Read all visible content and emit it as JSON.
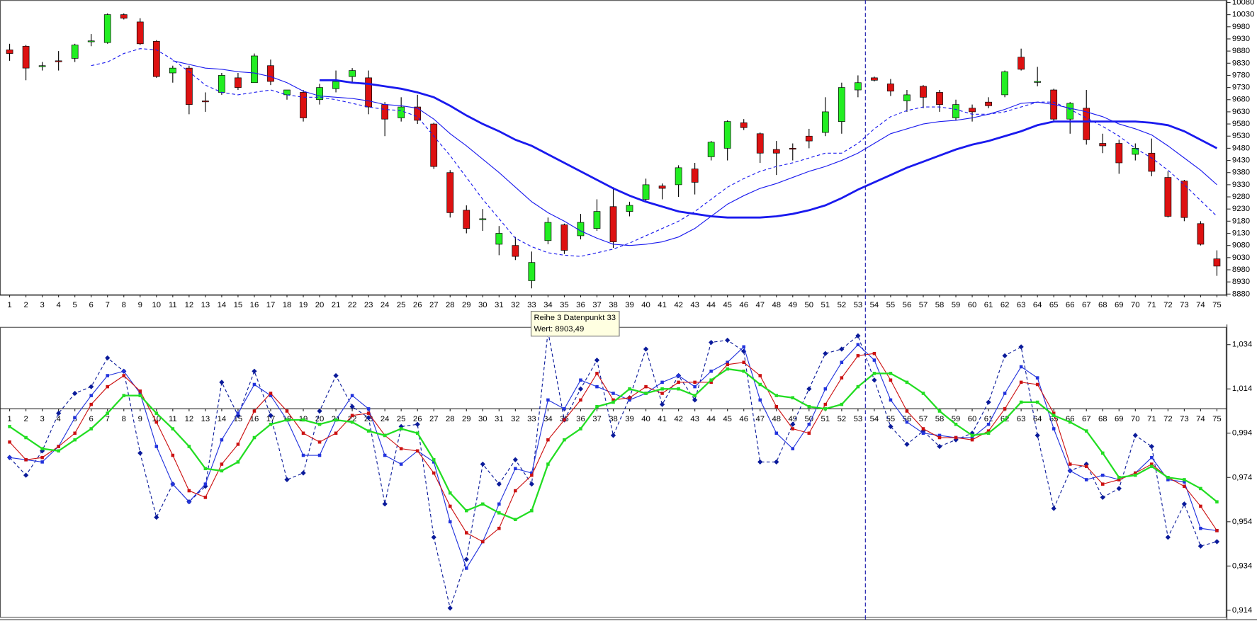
{
  "chart_data": [
    {
      "type": "candlestick",
      "categories": [
        "1",
        "2",
        "3",
        "4",
        "5",
        "6",
        "7",
        "8",
        "9",
        "10",
        "11",
        "12",
        "13",
        "14",
        "15",
        "16",
        "17",
        "18",
        "19",
        "20",
        "21",
        "22",
        "23",
        "24",
        "25",
        "26",
        "27",
        "28",
        "29",
        "30",
        "31",
        "32",
        "33",
        "34",
        "35",
        "36",
        "37",
        "38",
        "39",
        "40",
        "41",
        "42",
        "43",
        "44",
        "45",
        "46",
        "47",
        "48",
        "49",
        "50",
        "51",
        "52",
        "53",
        "54",
        "55",
        "56",
        "57",
        "58",
        "59",
        "60",
        "61",
        "62",
        "63",
        "64",
        "65",
        "66",
        "67",
        "68",
        "69",
        "70",
        "71",
        "72",
        "73",
        "74",
        "75"
      ],
      "open": [
        9885,
        9900,
        9820,
        9840,
        9850,
        9920,
        9915,
        10030,
        10000,
        9920,
        9790,
        9810,
        9675,
        9710,
        9770,
        9750,
        9820,
        9700,
        9710,
        9680,
        9725,
        9775,
        9770,
        9660,
        9605,
        9650,
        9580,
        9380,
        9225,
        9190,
        9085,
        9080,
        8935,
        9100,
        9165,
        9120,
        9150,
        9240,
        9220,
        9270,
        9325,
        9330,
        9395,
        9445,
        9480,
        9585,
        9540,
        9475,
        9480,
        9530,
        9545,
        9590,
        9720,
        9770,
        9745,
        9675,
        9735,
        9710,
        9605,
        9645,
        9670,
        9700,
        9855,
        9755,
        9720,
        9600,
        9645,
        9500,
        9500,
        9455,
        9460,
        9360,
        9345,
        9170,
        9025
      ],
      "high": [
        9910,
        9905,
        9835,
        9880,
        9910,
        9950,
        10035,
        10035,
        10015,
        9925,
        9820,
        9820,
        9710,
        9790,
        9790,
        9870,
        9845,
        9720,
        9720,
        9745,
        9800,
        9810,
        9800,
        9670,
        9690,
        9700,
        9585,
        9390,
        9245,
        9230,
        9160,
        9115,
        9055,
        9195,
        9170,
        9210,
        9270,
        9320,
        9260,
        9355,
        9335,
        9410,
        9420,
        9510,
        9595,
        9600,
        9545,
        9510,
        9500,
        9560,
        9690,
        9750,
        9780,
        9775,
        9765,
        9720,
        9740,
        9720,
        9680,
        9660,
        9690,
        9800,
        9890,
        9815,
        9725,
        9670,
        9720,
        9540,
        9515,
        9500,
        9520,
        9385,
        9350,
        9180,
        9060
      ],
      "low": [
        9840,
        9760,
        9800,
        9800,
        9835,
        9900,
        9910,
        10010,
        9905,
        9770,
        9750,
        9620,
        9630,
        9700,
        9720,
        9750,
        9740,
        9680,
        9590,
        9660,
        9710,
        9750,
        9620,
        9530,
        9590,
        9580,
        9395,
        9195,
        9130,
        9140,
        9040,
        9020,
        8903.49,
        9085,
        9045,
        9105,
        9140,
        9070,
        9200,
        9260,
        9270,
        9280,
        9290,
        9430,
        9430,
        9555,
        9420,
        9370,
        9430,
        9480,
        9530,
        9540,
        9690,
        9755,
        9695,
        9630,
        9645,
        9630,
        9595,
        9590,
        9645,
        9690,
        9800,
        9735,
        9590,
        9540,
        9495,
        9460,
        9375,
        9430,
        9365,
        9195,
        9180,
        9080,
        8955
      ],
      "close": [
        9870,
        9810,
        9820,
        9838,
        9905,
        9922,
        10030,
        10015,
        9910,
        9775,
        9810,
        9660,
        9672,
        9780,
        9730,
        9860,
        9755,
        9720,
        9605,
        9730,
        9755,
        9800,
        9650,
        9600,
        9650,
        9595,
        9405,
        9215,
        9150,
        9190,
        9130,
        9035,
        9010,
        9175,
        9060,
        9175,
        9220,
        9095,
        9245,
        9330,
        9315,
        9400,
        9340,
        9505,
        9590,
        9565,
        9460,
        9460,
        9478,
        9510,
        9630,
        9730,
        9750,
        9760,
        9715,
        9700,
        9690,
        9660,
        9660,
        9630,
        9655,
        9795,
        9805,
        9755,
        9600,
        9665,
        9515,
        9490,
        9420,
        9480,
        9385,
        9200,
        9195,
        9085,
        8995
      ],
      "up_color": "#22ee22",
      "down_color": "#dd1111",
      "series": [
        {
          "color": "#1a1aee",
          "dash": true,
          "width": 1,
          "values": [
            null,
            null,
            null,
            null,
            null,
            9820,
            9835,
            9870,
            9890,
            9885,
            9845,
            9795,
            9740,
            9710,
            9700,
            9710,
            9720,
            9700,
            9690,
            9690,
            9680,
            9665,
            9650,
            9640,
            9635,
            9610,
            9530,
            9450,
            9360,
            9270,
            9190,
            9110,
            9075,
            9050,
            9040,
            9035,
            9050,
            9065,
            9090,
            9120,
            9150,
            9180,
            9220,
            9270,
            9320,
            9355,
            9385,
            9405,
            9420,
            9440,
            9460,
            9460,
            9500,
            9560,
            9610,
            9635,
            9650,
            9650,
            9640,
            9620,
            9620,
            9630,
            9650,
            9670,
            9670,
            9640,
            9605,
            9570,
            9530,
            9480,
            9440,
            9390,
            9330,
            9265,
            9200
          ]
        },
        {
          "color": "#1a1aee",
          "dash": false,
          "width": 1,
          "values": [
            null,
            null,
            null,
            null,
            null,
            null,
            null,
            null,
            null,
            null,
            9840,
            9825,
            9810,
            9805,
            9795,
            9790,
            9775,
            9750,
            9715,
            9695,
            9690,
            9685,
            9675,
            9660,
            9655,
            9645,
            9600,
            9540,
            9490,
            9435,
            9380,
            9320,
            9260,
            9215,
            9180,
            9140,
            9110,
            9085,
            9080,
            9085,
            9095,
            9115,
            9150,
            9200,
            9250,
            9285,
            9315,
            9335,
            9360,
            9385,
            9405,
            9430,
            9460,
            9500,
            9540,
            9560,
            9580,
            9590,
            9595,
            9605,
            9620,
            9640,
            9665,
            9670,
            9660,
            9645,
            9630,
            9610,
            9580,
            9560,
            9535,
            9490,
            9440,
            9390,
            9330
          ]
        },
        {
          "color": "#1a1aee",
          "dash": false,
          "width": 2.5,
          "values": [
            null,
            null,
            null,
            null,
            null,
            null,
            null,
            null,
            null,
            null,
            null,
            null,
            null,
            null,
            null,
            null,
            null,
            null,
            null,
            9760,
            9760,
            9750,
            9745,
            9735,
            9725,
            9710,
            9690,
            9655,
            9615,
            9580,
            9550,
            9515,
            9490,
            9455,
            9420,
            9385,
            9350,
            9315,
            9285,
            9260,
            9240,
            9220,
            9210,
            9200,
            9195,
            9195,
            9195,
            9200,
            9210,
            9225,
            9245,
            9275,
            9310,
            9340,
            9370,
            9400,
            9425,
            9450,
            9475,
            9495,
            9510,
            9530,
            9550,
            9575,
            9590,
            9590,
            9590,
            9590,
            9590,
            9590,
            9585,
            9575,
            9550,
            9515,
            9480
          ]
        }
      ],
      "ylim": [
        8880,
        10080
      ],
      "yticks": [
        10080,
        10030,
        9980,
        9930,
        9880,
        9830,
        9780,
        9730,
        9680,
        9630,
        9580,
        9530,
        9480,
        9430,
        9380,
        9330,
        9280,
        9230,
        9180,
        9130,
        9080,
        9030,
        8980,
        8930,
        8880
      ]
    },
    {
      "type": "line",
      "categories": [
        "1",
        "2",
        "3",
        "4",
        "5",
        "6",
        "7",
        "8",
        "9",
        "10",
        "11",
        "12",
        "13",
        "14",
        "15",
        "16",
        "17",
        "18",
        "19",
        "20",
        "21",
        "22",
        "23",
        "24",
        "25",
        "26",
        "27",
        "28",
        "29",
        "30",
        "31",
        "32",
        "33",
        "34",
        "35",
        "36",
        "37",
        "38",
        "39",
        "40",
        "41",
        "42",
        "43",
        "44",
        "45",
        "46",
        "47",
        "48",
        "49",
        "50",
        "51",
        "52",
        "53",
        "54",
        "55",
        "56",
        "57",
        "58",
        "59",
        "60",
        "61",
        "62",
        "63",
        "64",
        "65",
        "66",
        "67",
        "68",
        "69",
        "70",
        "71",
        "72",
        "73",
        "74",
        "75"
      ],
      "series": [
        {
          "color": "#0a1a9a",
          "dash": true,
          "width": 1,
          "marker": "diamond",
          "values": [
            0.983,
            0.975,
            0.986,
            1.003,
            1.012,
            1.015,
            1.028,
            1.022,
            0.985,
            0.956,
            0.971,
            0.963,
            0.97,
            1.017,
            1.002,
            1.022,
            1.002,
            0.973,
            0.976,
            1.004,
            1.02,
            1.006,
            1.001,
            0.962,
            0.997,
            0.998,
            0.947,
            0.915,
            0.937,
            0.98,
            0.971,
            0.982,
            0.971,
            1.04,
            1.0,
            1.014,
            1.027,
            0.993,
            1.01,
            1.032,
            1.007,
            1.02,
            1.009,
            1.035,
            1.036,
            1.031,
            0.981,
            0.981,
            0.998,
            1.014,
            1.03,
            1.032,
            1.038,
            1.018,
            0.997,
            0.989,
            0.995,
            0.988,
            0.991,
            0.994,
            1.008,
            1.029,
            1.033,
            0.993,
            0.96,
            0.977,
            0.98,
            0.965,
            0.969,
            0.993,
            0.988,
            0.947,
            0.962,
            0.943,
            0.945
          ]
        },
        {
          "color": "#2233dd",
          "dash": false,
          "width": 1,
          "marker": "square",
          "values": [
            0.983,
            0.982,
            0.981,
            0.988,
            1.001,
            1.011,
            1.02,
            1.022,
            1.012,
            0.988,
            0.971,
            0.963,
            0.971,
            0.991,
            1.003,
            1.016,
            1.011,
            1.0,
            0.984,
            0.984,
            1.0,
            1.011,
            1.005,
            0.984,
            0.98,
            0.986,
            0.981,
            0.954,
            0.933,
            0.945,
            0.962,
            0.978,
            0.976,
            1.009,
            1.005,
            1.018,
            1.015,
            1.012,
            1.009,
            1.012,
            1.017,
            1.02,
            1.015,
            1.022,
            1.026,
            1.033,
            1.009,
            0.994,
            0.987,
            0.998,
            1.014,
            1.026,
            1.034,
            1.027,
            1.009,
            0.999,
            0.994,
            0.993,
            0.992,
            0.992,
            0.998,
            1.012,
            1.024,
            1.019,
            0.996,
            0.977,
            0.973,
            0.975,
            0.973,
            0.976,
            0.983,
            0.973,
            0.972,
            0.951,
            0.95
          ]
        },
        {
          "color": "#cc1111",
          "dash": false,
          "width": 1,
          "marker": "square",
          "values": [
            0.99,
            0.982,
            0.983,
            0.988,
            0.994,
            1.007,
            1.015,
            1.02,
            1.013,
            0.999,
            0.984,
            0.968,
            0.965,
            0.98,
            0.989,
            1.004,
            1.012,
            1.004,
            0.994,
            0.99,
            0.994,
            1.002,
            1.003,
            0.993,
            0.987,
            0.986,
            0.976,
            0.961,
            0.949,
            0.945,
            0.951,
            0.968,
            0.975,
            0.991,
            1.0,
            1.009,
            1.021,
            1.009,
            1.01,
            1.015,
            1.012,
            1.017,
            1.017,
            1.017,
            1.025,
            1.026,
            1.02,
            1.006,
            0.996,
            0.994,
            1.007,
            1.019,
            1.029,
            1.03,
            1.018,
            1.004,
            0.996,
            0.992,
            0.992,
            0.991,
            0.995,
            1.005,
            1.017,
            1.016,
            1.003,
            0.98,
            0.979,
            0.971,
            0.973,
            0.976,
            0.98,
            0.974,
            0.97,
            0.961,
            0.95
          ]
        },
        {
          "color": "#22dd22",
          "dash": false,
          "width": 2,
          "marker": "square",
          "values": [
            0.997,
            0.992,
            0.987,
            0.986,
            0.991,
            0.996,
            1.003,
            1.011,
            1.011,
            1.003,
            0.996,
            0.988,
            0.978,
            0.977,
            0.981,
            0.992,
            0.998,
            1.0,
            1.0,
            0.998,
            1.0,
            0.999,
            0.995,
            0.993,
            0.996,
            0.994,
            0.982,
            0.967,
            0.959,
            0.962,
            0.958,
            0.955,
            0.959,
            0.98,
            0.991,
            0.996,
            1.006,
            1.008,
            1.014,
            1.012,
            1.014,
            1.014,
            1.011,
            1.018,
            1.023,
            1.022,
            1.016,
            1.011,
            1.01,
            1.006,
            1.005,
            1.007,
            1.015,
            1.021,
            1.021,
            1.017,
            1.012,
            1.004,
            0.998,
            0.993,
            0.994,
            1.0,
            1.008,
            1.008,
            1.002,
            0.999,
            0.995,
            0.985,
            0.974,
            0.975,
            0.979,
            0.974,
            0.973,
            0.969,
            0.963
          ]
        }
      ],
      "ylim": [
        0.911,
        1.042
      ],
      "xaxis_cross": 1.005,
      "yticks": [
        {
          "value": 1.034,
          "label": "1,034"
        },
        {
          "value": 1.014,
          "label": "1,014"
        },
        {
          "value": 0.994,
          "label": "0,994"
        },
        {
          "value": 0.974,
          "label": "0,974"
        },
        {
          "value": 0.954,
          "label": "0,954"
        },
        {
          "value": 0.934,
          "label": "0,934"
        },
        {
          "value": 0.914,
          "label": "0,914"
        }
      ]
    }
  ],
  "tooltip": {
    "lines": [
      "Reihe 3 Datenpunkt 33",
      "Wert: 8903,49"
    ]
  }
}
